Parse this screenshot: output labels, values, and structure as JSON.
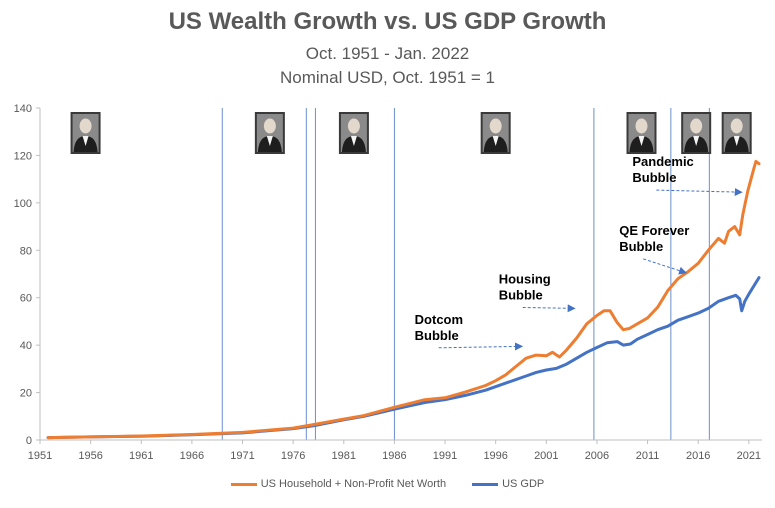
{
  "chart_data": {
    "type": "line",
    "title": "US Wealth Growth vs. US GDP Growth",
    "subtitle_lines": [
      "Oct. 1951 - Jan. 2022",
      "Nominal USD, Oct. 1951 = 1"
    ],
    "xlabel": "",
    "ylabel": "",
    "xlim": [
      1951,
      2022
    ],
    "ylim": [
      0,
      140
    ],
    "y_ticks": [
      0,
      20,
      40,
      60,
      80,
      100,
      120,
      140
    ],
    "x_ticks": [
      "1951",
      "1956",
      "1961",
      "1966",
      "1971",
      "1976",
      "1981",
      "1986",
      "1991",
      "1996",
      "2001",
      "2006",
      "2011",
      "2016",
      "2021"
    ],
    "grid": "vertical reference lines only",
    "legend_position": "bottom",
    "vertical_lines": [
      1969.0,
      1977.3,
      1978.2,
      1986.0,
      2005.7,
      2013.3,
      2017.1
    ],
    "series": [
      {
        "name": "US Household + Non-Profit Net Worth",
        "color": "#ED7D31",
        "points": [
          [
            1951.8,
            1.0
          ],
          [
            1956,
            1.3
          ],
          [
            1961,
            1.7
          ],
          [
            1966,
            2.3
          ],
          [
            1971,
            3.2
          ],
          [
            1976,
            5.0
          ],
          [
            1978,
            6.5
          ],
          [
            1981,
            8.8
          ],
          [
            1983,
            10.3
          ],
          [
            1986,
            13.8
          ],
          [
            1989,
            17.0
          ],
          [
            1991,
            17.8
          ],
          [
            1993,
            20.2
          ],
          [
            1995,
            23.0
          ],
          [
            1996,
            25.0
          ],
          [
            1997,
            27.5
          ],
          [
            1998,
            31.0
          ],
          [
            1999,
            34.5
          ],
          [
            2000,
            35.8
          ],
          [
            2001,
            35.5
          ],
          [
            2001.6,
            37.0
          ],
          [
            2002.3,
            35.0
          ],
          [
            2003,
            38.0
          ],
          [
            2004,
            43.0
          ],
          [
            2005,
            49.0
          ],
          [
            2006,
            52.5
          ],
          [
            2006.7,
            54.5
          ],
          [
            2007.3,
            54.5
          ],
          [
            2008,
            49.5
          ],
          [
            2008.6,
            46.5
          ],
          [
            2009.2,
            47.0
          ],
          [
            2010,
            49.0
          ],
          [
            2011,
            51.5
          ],
          [
            2012,
            56.0
          ],
          [
            2013,
            63.0
          ],
          [
            2014,
            68.0
          ],
          [
            2015,
            71.0
          ],
          [
            2016,
            74.5
          ],
          [
            2017,
            80.0
          ],
          [
            2018,
            85.0
          ],
          [
            2018.6,
            83.0
          ],
          [
            2019,
            88.0
          ],
          [
            2019.6,
            90.0
          ],
          [
            2020.1,
            86.5
          ],
          [
            2020.4,
            95.0
          ],
          [
            2020.9,
            105.0
          ],
          [
            2021.4,
            113.0
          ],
          [
            2021.7,
            117.5
          ],
          [
            2022.0,
            116.5
          ]
        ]
      },
      {
        "name": "US GDP",
        "color": "#4472C4",
        "points": [
          [
            1951.8,
            1.0
          ],
          [
            1956,
            1.3
          ],
          [
            1961,
            1.6
          ],
          [
            1966,
            2.2
          ],
          [
            1971,
            3.0
          ],
          [
            1976,
            4.8
          ],
          [
            1978,
            6.0
          ],
          [
            1981,
            8.5
          ],
          [
            1983,
            10.0
          ],
          [
            1986,
            13.0
          ],
          [
            1989,
            15.8
          ],
          [
            1991,
            17.0
          ],
          [
            1993,
            18.8
          ],
          [
            1995,
            21.0
          ],
          [
            1997,
            24.0
          ],
          [
            1999,
            27.0
          ],
          [
            2000,
            28.5
          ],
          [
            2001,
            29.5
          ],
          [
            2002,
            30.2
          ],
          [
            2003,
            32.0
          ],
          [
            2004,
            34.5
          ],
          [
            2005,
            37.0
          ],
          [
            2006,
            39.0
          ],
          [
            2007,
            41.0
          ],
          [
            2008,
            41.5
          ],
          [
            2008.6,
            40.0
          ],
          [
            2009.3,
            40.5
          ],
          [
            2010,
            42.5
          ],
          [
            2011,
            44.5
          ],
          [
            2012,
            46.5
          ],
          [
            2013,
            48.0
          ],
          [
            2014,
            50.5
          ],
          [
            2015,
            52.0
          ],
          [
            2016,
            53.5
          ],
          [
            2017,
            55.5
          ],
          [
            2018,
            58.5
          ],
          [
            2019,
            60.0
          ],
          [
            2019.7,
            61.0
          ],
          [
            2020.1,
            59.5
          ],
          [
            2020.3,
            54.5
          ],
          [
            2020.6,
            58.5
          ],
          [
            2021,
            61.5
          ],
          [
            2021.5,
            65.0
          ],
          [
            2022.0,
            68.5
          ]
        ]
      }
    ],
    "annotations": [
      {
        "lines": [
          "Pandemic",
          "Bubble"
        ],
        "x": 2009.5,
        "y": 115.5,
        "arrow_to": [
          2020.3,
          104.5
        ]
      },
      {
        "lines": [
          "QE Forever",
          "Bubble"
        ],
        "x": 2008.2,
        "y": 86.5,
        "arrow_to": [
          2014.8,
          70.5
        ]
      },
      {
        "lines": [
          "Housing",
          "Bubble"
        ],
        "x": 1996.3,
        "y": 66.0,
        "arrow_to": [
          2003.8,
          55.5
        ]
      },
      {
        "lines": [
          "Dotcom",
          "Bubble"
        ],
        "x": 1988.0,
        "y": 49.0,
        "arrow_to": [
          1998.6,
          39.5
        ]
      }
    ],
    "portraits": [
      {
        "name": "portrait-1",
        "x": 1955.5
      },
      {
        "name": "portrait-2",
        "x": 1973.7
      },
      {
        "name": "portrait-3",
        "x": 1982.0
      },
      {
        "name": "portrait-4",
        "x": 1996.0
      },
      {
        "name": "portrait-5",
        "x": 2010.4
      },
      {
        "name": "portrait-6",
        "x": 2015.8
      },
      {
        "name": "portrait-7",
        "x": 2019.8
      }
    ]
  }
}
